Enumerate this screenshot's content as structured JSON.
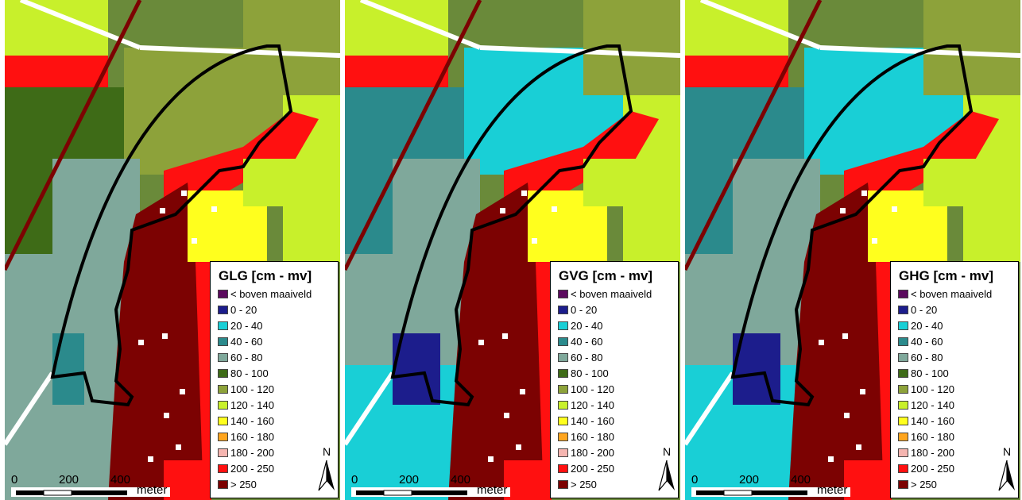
{
  "panels": [
    {
      "id": "glg",
      "title": "GLG [cm - mv]"
    },
    {
      "id": "gvg",
      "title": "GVG [cm - mv]"
    },
    {
      "id": "ghg",
      "title": "GHG [cm - mv]"
    }
  ],
  "legend_classes": [
    {
      "label": "< boven maaiveld",
      "color": "#5b0a5e"
    },
    {
      "label": "0 - 20",
      "color": "#1c1d8c"
    },
    {
      "label": "20 - 40",
      "color": "#19cfd6"
    },
    {
      "label": "40 - 60",
      "color": "#2b8a8c"
    },
    {
      "label": "60 - 80",
      "color": "#7fa89b"
    },
    {
      "label": "80 - 100",
      "color": "#3e6b17"
    },
    {
      "label": "100 - 120",
      "color": "#8da23a"
    },
    {
      "label": "120 - 140",
      "color": "#c8f02b"
    },
    {
      "label": "140 - 160",
      "color": "#ffff1e"
    },
    {
      "label": "160 - 180",
      "color": "#ffa51e"
    },
    {
      "label": "180 - 200",
      "color": "#f5b5b0"
    },
    {
      "label": "200 - 250",
      "color": "#ff1010"
    },
    {
      "label": "> 250",
      "color": "#7c0202"
    }
  ],
  "scale_bar": {
    "ticks": [
      "0",
      "200",
      "400"
    ],
    "unit": "meter"
  },
  "north_arrow": {
    "label": "N"
  }
}
